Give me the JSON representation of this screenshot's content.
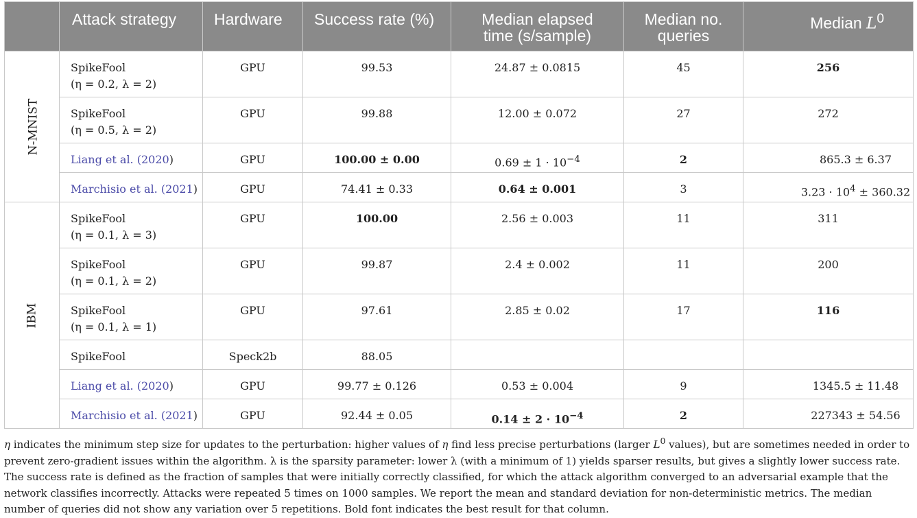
{
  "headers": {
    "attack_strategy": "Attack strategy",
    "hardware": "Hardware",
    "success_rate": "Success rate (%)",
    "elapsed_line1": "Median elapsed",
    "elapsed_line2": "time (s/sample)",
    "queries_line1": "Median no.",
    "queries_line2": "queries",
    "l0_prefix": "Median ",
    "l0_symbol": "L",
    "l0_sup": "0"
  },
  "groups": {
    "nmnist": "N-MNIST",
    "ibm": "IBM"
  },
  "rows": [
    {
      "name": "SpikeFool",
      "params": "(η = 0.2, λ = 2)",
      "hardware": "GPU",
      "success": "99.53",
      "time": "24.87 ± 0.0815",
      "queries": "45",
      "l0": "256"
    },
    {
      "name": "SpikeFool",
      "params": "(η = 0.5, λ = 2)",
      "hardware": "GPU",
      "success": "99.88",
      "time": "12.00 ± 0.072",
      "queries": "27",
      "l0": "272"
    },
    {
      "author": "Liang et al. (",
      "year": "2020",
      "close": ")",
      "hardware": "GPU",
      "success": "100.00 ± 0.00",
      "time_base": "0.69 ± 1 · 10",
      "time_exp": "−4",
      "queries": "2",
      "l0": "865.3 ± 6.37"
    },
    {
      "author": "Marchisio et al. (",
      "year": "2021",
      "close": ")",
      "hardware": "GPU",
      "success": "74.41 ± 0.33",
      "time": "0.64 ± 0.001",
      "queries": "3",
      "l0_base": "3.23 · 10",
      "l0_exp": "4",
      "l0_tail": " ± 360.32"
    },
    {
      "name": "SpikeFool",
      "params": "(η = 0.1, λ = 3)",
      "hardware": "GPU",
      "success": "100.00",
      "time": "2.56 ± 0.003",
      "queries": "11",
      "l0": "311"
    },
    {
      "name": "SpikeFool",
      "params": "(η = 0.1, λ = 2)",
      "hardware": "GPU",
      "success": "99.87",
      "time": "2.4 ± 0.002",
      "queries": "11",
      "l0": "200"
    },
    {
      "name": "SpikeFool",
      "params": "(η = 0.1, λ = 1)",
      "hardware": "GPU",
      "success": "97.61",
      "time": "2.85 ± 0.02",
      "queries": "17",
      "l0": "116"
    },
    {
      "name": "SpikeFool",
      "hardware": "Speck2b",
      "success": "88.05"
    },
    {
      "author": "Liang et al. (",
      "year": "2020",
      "close": ")",
      "hardware": "GPU",
      "success": "99.77 ± 0.126",
      "time": "0.53 ± 0.004",
      "queries": "9",
      "l0": "1345.5 ± 11.48"
    },
    {
      "author": "Marchisio et al. (",
      "year": "2021",
      "close": ")",
      "hardware": "GPU",
      "success": "92.44 ± 0.05",
      "time_base": "0.14 ± 2 · 10",
      "time_exp": "−4",
      "queries": "2",
      "l0": "227343 ± 54.56"
    }
  ],
  "caption": {
    "eta1": "η",
    "t1": " indicates the minimum step size for updates to the perturbation: higher values of ",
    "eta2": "η",
    "t2": " find less precise perturbations (larger ",
    "L": "L",
    "L_sup": "0",
    "t3": " values), but are sometimes needed in order to prevent zero-gradient issues within the algorithm. λ is the sparsity parameter: lower λ (with a minimum of 1) yields sparser results, but gives a slightly lower success rate. The success rate is defined as the fraction of samples that were initially correctly classified, for which the attack algorithm converged to an adversarial example that the network classifies incorrectly. Attacks were repeated 5 times on 1000 samples. We report the mean and standard deviation for non-deterministic metrics. The median number of queries did not show any variation over 5 repetitions. Bold font indicates the best result for that column."
  }
}
